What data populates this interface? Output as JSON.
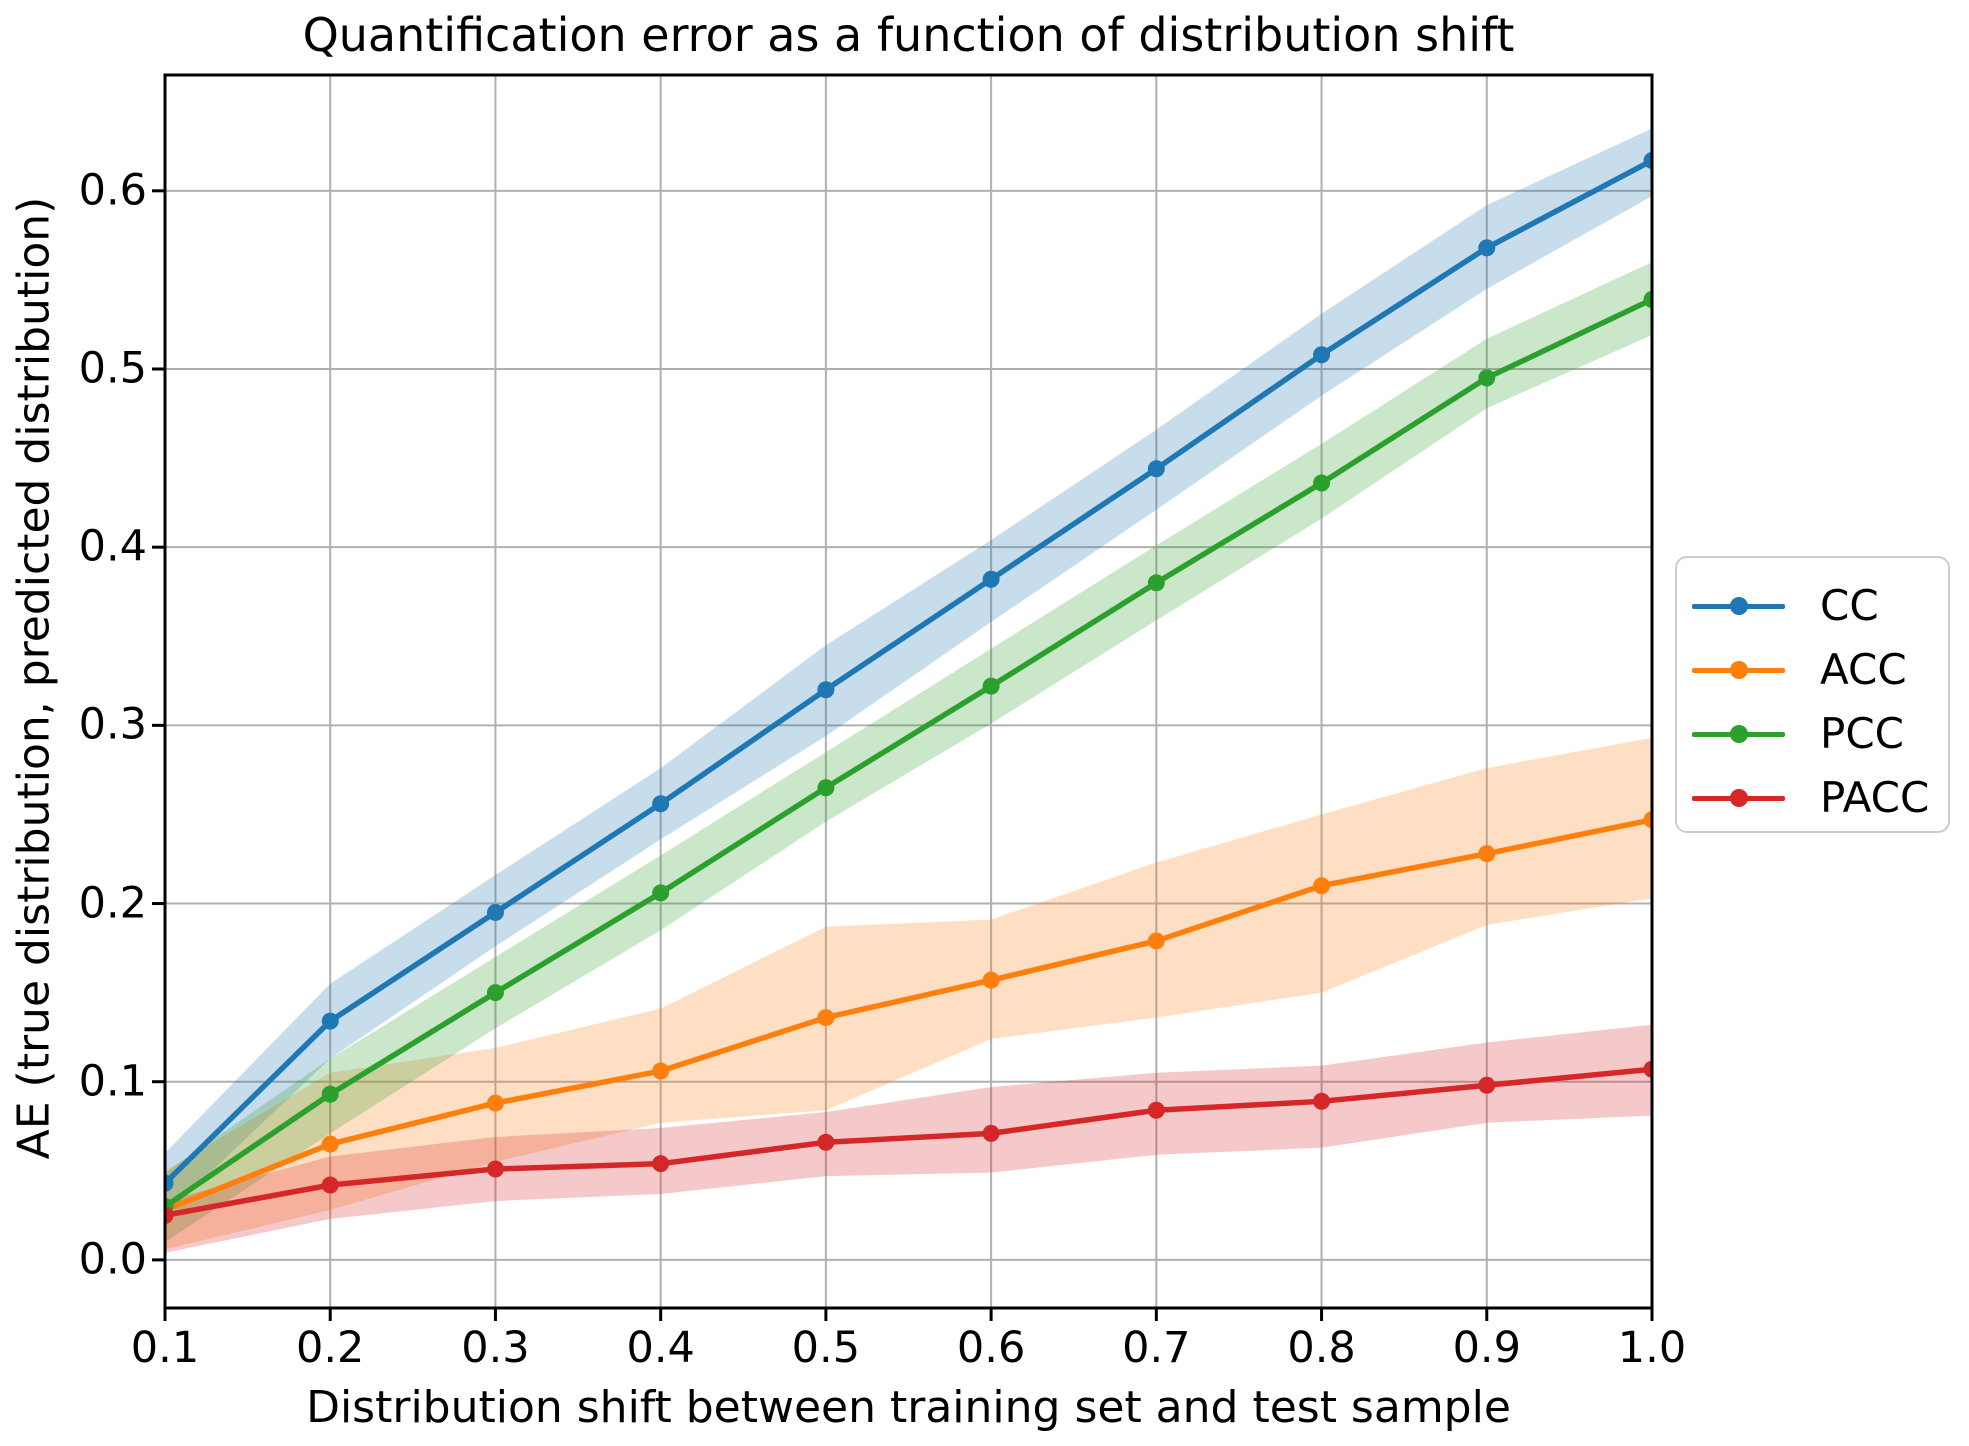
{
  "chart_data": {
    "type": "line",
    "title": "Quantification error as a function of distribution shift",
    "xlabel": "Distribution shift between training set and test sample",
    "ylabel": "AE (true distribution, predicted distribution)",
    "x": [
      0.1,
      0.2,
      0.3,
      0.4,
      0.5,
      0.6,
      0.7,
      0.8,
      0.9,
      1.0
    ],
    "xticks": [
      0.1,
      0.2,
      0.3,
      0.4,
      0.5,
      0.6,
      0.7,
      0.8,
      0.9,
      1.0
    ],
    "yticks": [
      0.0,
      0.1,
      0.2,
      0.3,
      0.4,
      0.5,
      0.6
    ],
    "xlim": [
      0.1,
      1.0
    ],
    "ylim": [
      -0.027,
      0.665
    ],
    "grid": true,
    "grid_color": "#b0b0b0",
    "band_opacity": 0.25,
    "legend_position": "outside right",
    "series": [
      {
        "name": "CC",
        "color": "#1f77b4",
        "values": [
          0.043,
          0.134,
          0.195,
          0.256,
          0.32,
          0.382,
          0.444,
          0.508,
          0.568,
          0.617
        ],
        "band_low": [
          0.025,
          0.113,
          0.176,
          0.236,
          0.294,
          0.358,
          0.421,
          0.485,
          0.545,
          0.597
        ],
        "band_high": [
          0.06,
          0.155,
          0.216,
          0.276,
          0.345,
          0.404,
          0.466,
          0.531,
          0.592,
          0.635
        ]
      },
      {
        "name": "ACC",
        "color": "#ff7f0e",
        "values": [
          0.028,
          0.065,
          0.088,
          0.106,
          0.136,
          0.157,
          0.179,
          0.21,
          0.228,
          0.247
        ],
        "band_low": [
          0.006,
          0.028,
          0.055,
          0.077,
          0.084,
          0.124,
          0.136,
          0.15,
          0.188,
          0.203
        ],
        "band_high": [
          0.05,
          0.105,
          0.119,
          0.141,
          0.187,
          0.191,
          0.223,
          0.25,
          0.276,
          0.293
        ]
      },
      {
        "name": "PCC",
        "color": "#2ca02c",
        "values": [
          0.03,
          0.093,
          0.15,
          0.206,
          0.265,
          0.322,
          0.38,
          0.436,
          0.495,
          0.539
        ],
        "band_low": [
          0.01,
          0.071,
          0.13,
          0.185,
          0.246,
          0.301,
          0.359,
          0.416,
          0.478,
          0.519
        ],
        "band_high": [
          0.049,
          0.113,
          0.17,
          0.227,
          0.285,
          0.343,
          0.401,
          0.458,
          0.517,
          0.56
        ]
      },
      {
        "name": "PACC",
        "color": "#d62728",
        "values": [
          0.025,
          0.042,
          0.051,
          0.054,
          0.066,
          0.071,
          0.084,
          0.089,
          0.098,
          0.107
        ],
        "band_low": [
          0.004,
          0.023,
          0.033,
          0.037,
          0.047,
          0.049,
          0.059,
          0.063,
          0.077,
          0.081
        ],
        "band_high": [
          0.033,
          0.058,
          0.069,
          0.074,
          0.083,
          0.097,
          0.105,
          0.109,
          0.122,
          0.132
        ]
      }
    ]
  }
}
